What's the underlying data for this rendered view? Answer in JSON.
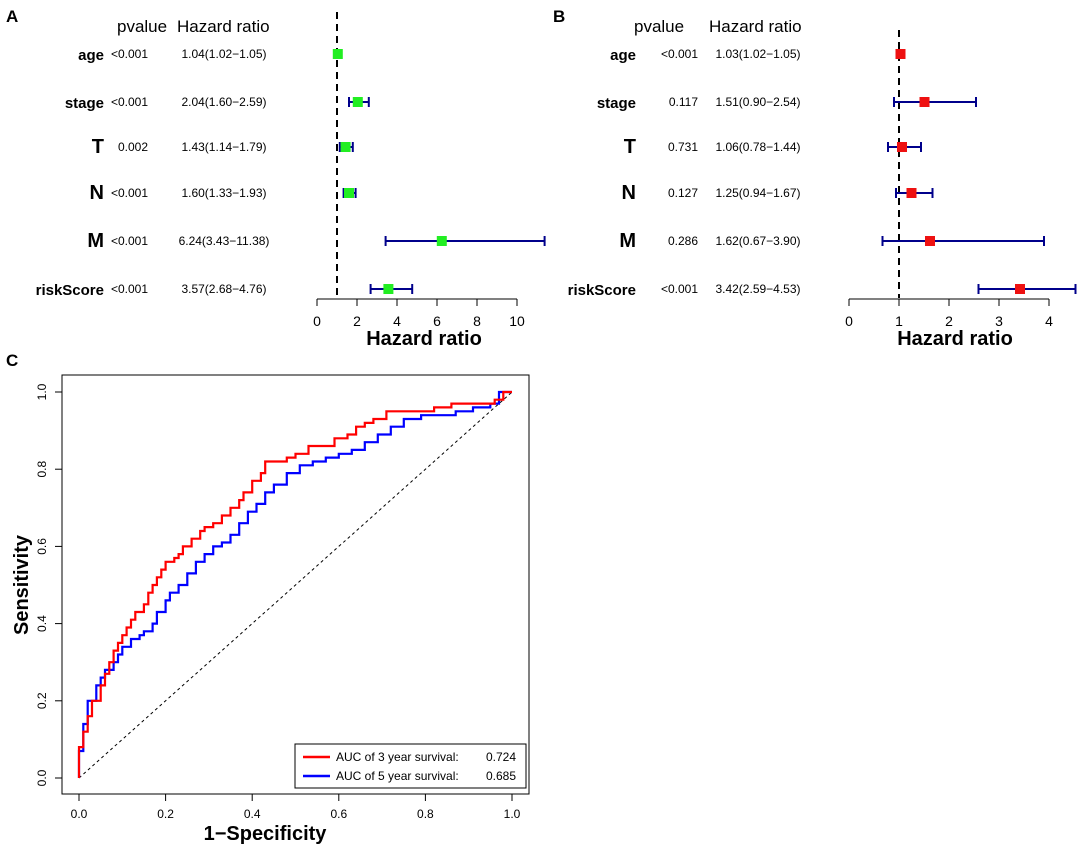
{
  "chart_data": [
    {
      "panel": "A",
      "type": "forest",
      "headers": {
        "pvalue": "pvalue",
        "hr": "Hazard ratio"
      },
      "xlabel": "Hazard ratio",
      "xlim": [
        0,
        10
      ],
      "xticks": [
        0,
        2,
        4,
        6,
        8,
        10
      ],
      "ref_line": 1,
      "marker_color": "#22ee22",
      "ci_color": "#00008b",
      "rows": [
        {
          "label": "age",
          "pvalue": "<0.001",
          "hr_text": "1.04(1.02−1.05)",
          "hr": 1.04,
          "lo": 1.02,
          "hi": 1.05
        },
        {
          "label": "stage",
          "pvalue": "<0.001",
          "hr_text": "2.04(1.60−2.59)",
          "hr": 2.04,
          "lo": 1.6,
          "hi": 2.59
        },
        {
          "label": "T",
          "pvalue": "0.002",
          "hr_text": "1.43(1.14−1.79)",
          "hr": 1.43,
          "lo": 1.14,
          "hi": 1.79
        },
        {
          "label": "N",
          "pvalue": "<0.001",
          "hr_text": "1.60(1.33−1.93)",
          "hr": 1.6,
          "lo": 1.33,
          "hi": 1.93
        },
        {
          "label": "M",
          "pvalue": "<0.001",
          "hr_text": "6.24(3.43−11.38)",
          "hr": 6.24,
          "lo": 3.43,
          "hi": 11.38
        },
        {
          "label": "riskScore",
          "pvalue": "<0.001",
          "hr_text": "3.57(2.68−4.76)",
          "hr": 3.57,
          "lo": 2.68,
          "hi": 4.76
        }
      ]
    },
    {
      "panel": "B",
      "type": "forest",
      "headers": {
        "pvalue": "pvalue",
        "hr": "Hazard ratio"
      },
      "xlabel": "Hazard ratio",
      "xlim": [
        0,
        4
      ],
      "xticks": [
        0,
        1,
        2,
        3,
        4
      ],
      "ref_line": 1,
      "marker_color": "#ee1111",
      "ci_color": "#00008b",
      "rows": [
        {
          "label": "age",
          "pvalue": "<0.001",
          "hr_text": "1.03(1.02−1.05)",
          "hr": 1.03,
          "lo": 1.02,
          "hi": 1.05
        },
        {
          "label": "stage",
          "pvalue": "0.117",
          "hr_text": "1.51(0.90−2.54)",
          "hr": 1.51,
          "lo": 0.9,
          "hi": 2.54
        },
        {
          "label": "T",
          "pvalue": "0.731",
          "hr_text": "1.06(0.78−1.44)",
          "hr": 1.06,
          "lo": 0.78,
          "hi": 1.44
        },
        {
          "label": "N",
          "pvalue": "0.127",
          "hr_text": "1.25(0.94−1.67)",
          "hr": 1.25,
          "lo": 0.94,
          "hi": 1.67
        },
        {
          "label": "M",
          "pvalue": "0.286",
          "hr_text": "1.62(0.67−3.90)",
          "hr": 1.62,
          "lo": 0.67,
          "hi": 3.9
        },
        {
          "label": "riskScore",
          "pvalue": "<0.001",
          "hr_text": "3.42(2.59−4.53)",
          "hr": 3.42,
          "lo": 2.59,
          "hi": 4.53
        }
      ]
    },
    {
      "panel": "C",
      "type": "line",
      "xlabel": "1−Specificity",
      "ylabel": "Sensitivity",
      "xlim": [
        0,
        1
      ],
      "ylim": [
        0,
        1
      ],
      "xticks": [
        0.0,
        0.2,
        0.4,
        0.6,
        0.8,
        1.0
      ],
      "yticks": [
        0.0,
        0.2,
        0.4,
        0.6,
        0.8,
        1.0
      ],
      "tick_labels": [
        "0.0",
        "0.2",
        "0.4",
        "0.6",
        "0.8",
        "1.0"
      ],
      "legend": [
        {
          "label": "AUC of 3 year survival:",
          "value": "0.724",
          "color": "#ff0000"
        },
        {
          "label": "AUC of 5 year survival:",
          "value": "0.685",
          "color": "#0000ff"
        }
      ],
      "series": [
        {
          "name": "AUC of 3 year survival",
          "color": "#ff0000",
          "x": [
            0,
            0,
            0.01,
            0.01,
            0.02,
            0.02,
            0.03,
            0.03,
            0.05,
            0.05,
            0.06,
            0.06,
            0.07,
            0.07,
            0.08,
            0.08,
            0.09,
            0.09,
            0.1,
            0.1,
            0.11,
            0.11,
            0.12,
            0.12,
            0.13,
            0.13,
            0.15,
            0.15,
            0.16,
            0.16,
            0.17,
            0.17,
            0.18,
            0.18,
            0.19,
            0.19,
            0.2,
            0.2,
            0.22,
            0.22,
            0.23,
            0.23,
            0.24,
            0.24,
            0.26,
            0.26,
            0.28,
            0.28,
            0.29,
            0.29,
            0.31,
            0.31,
            0.33,
            0.33,
            0.35,
            0.35,
            0.37,
            0.37,
            0.38,
            0.38,
            0.4,
            0.4,
            0.42,
            0.42,
            0.43,
            0.43,
            0.45,
            0.45,
            0.48,
            0.48,
            0.5,
            0.5,
            0.53,
            0.53,
            0.56,
            0.56,
            0.59,
            0.59,
            0.62,
            0.62,
            0.64,
            0.64,
            0.66,
            0.66,
            0.68,
            0.68,
            0.71,
            0.71,
            0.74,
            0.74,
            0.78,
            0.78,
            0.82,
            0.82,
            0.86,
            0.86,
            0.9,
            0.9,
            0.94,
            0.94,
            0.96,
            0.96,
            0.98,
            0.98,
            1.0
          ],
          "y": [
            0,
            0.08,
            0.08,
            0.12,
            0.12,
            0.16,
            0.16,
            0.2,
            0.2,
            0.24,
            0.24,
            0.27,
            0.27,
            0.3,
            0.3,
            0.33,
            0.33,
            0.35,
            0.35,
            0.37,
            0.37,
            0.39,
            0.39,
            0.41,
            0.41,
            0.43,
            0.43,
            0.45,
            0.45,
            0.48,
            0.48,
            0.5,
            0.5,
            0.52,
            0.52,
            0.54,
            0.54,
            0.56,
            0.56,
            0.57,
            0.57,
            0.58,
            0.58,
            0.6,
            0.6,
            0.62,
            0.62,
            0.64,
            0.64,
            0.65,
            0.65,
            0.66,
            0.66,
            0.68,
            0.68,
            0.7,
            0.7,
            0.72,
            0.72,
            0.74,
            0.74,
            0.77,
            0.77,
            0.79,
            0.79,
            0.82,
            0.82,
            0.82,
            0.82,
            0.83,
            0.83,
            0.84,
            0.84,
            0.86,
            0.86,
            0.86,
            0.86,
            0.88,
            0.88,
            0.89,
            0.89,
            0.91,
            0.91,
            0.92,
            0.92,
            0.93,
            0.93,
            0.95,
            0.95,
            0.95,
            0.95,
            0.95,
            0.95,
            0.96,
            0.96,
            0.97,
            0.97,
            0.97,
            0.97,
            0.97,
            0.97,
            0.98,
            0.98,
            1.0,
            1.0
          ]
        },
        {
          "name": "AUC of 5 year survival",
          "color": "#0000ff",
          "x": [
            0,
            0,
            0.01,
            0.01,
            0.02,
            0.02,
            0.04,
            0.04,
            0.05,
            0.05,
            0.06,
            0.06,
            0.08,
            0.08,
            0.09,
            0.09,
            0.1,
            0.1,
            0.12,
            0.12,
            0.14,
            0.14,
            0.15,
            0.15,
            0.17,
            0.17,
            0.18,
            0.18,
            0.2,
            0.2,
            0.21,
            0.21,
            0.23,
            0.23,
            0.25,
            0.25,
            0.27,
            0.27,
            0.29,
            0.29,
            0.31,
            0.31,
            0.33,
            0.33,
            0.35,
            0.35,
            0.37,
            0.37,
            0.39,
            0.39,
            0.41,
            0.41,
            0.43,
            0.43,
            0.45,
            0.45,
            0.48,
            0.48,
            0.51,
            0.51,
            0.54,
            0.54,
            0.57,
            0.57,
            0.6,
            0.6,
            0.63,
            0.63,
            0.66,
            0.66,
            0.69,
            0.69,
            0.72,
            0.72,
            0.75,
            0.75,
            0.79,
            0.79,
            0.83,
            0.83,
            0.87,
            0.87,
            0.91,
            0.91,
            0.95,
            0.95,
            0.97,
            0.97,
            1.0
          ],
          "y": [
            0,
            0.07,
            0.07,
            0.14,
            0.14,
            0.2,
            0.2,
            0.24,
            0.24,
            0.26,
            0.26,
            0.28,
            0.28,
            0.3,
            0.3,
            0.32,
            0.32,
            0.34,
            0.34,
            0.36,
            0.36,
            0.37,
            0.37,
            0.38,
            0.38,
            0.4,
            0.4,
            0.43,
            0.43,
            0.46,
            0.46,
            0.48,
            0.48,
            0.5,
            0.5,
            0.53,
            0.53,
            0.56,
            0.56,
            0.58,
            0.58,
            0.6,
            0.6,
            0.61,
            0.61,
            0.63,
            0.63,
            0.66,
            0.66,
            0.69,
            0.69,
            0.71,
            0.71,
            0.74,
            0.74,
            0.76,
            0.76,
            0.79,
            0.79,
            0.81,
            0.81,
            0.82,
            0.82,
            0.83,
            0.83,
            0.84,
            0.84,
            0.85,
            0.85,
            0.87,
            0.87,
            0.89,
            0.89,
            0.91,
            0.91,
            0.93,
            0.93,
            0.94,
            0.94,
            0.94,
            0.94,
            0.95,
            0.95,
            0.96,
            0.96,
            0.97,
            0.97,
            1.0,
            1.0
          ]
        }
      ]
    }
  ]
}
